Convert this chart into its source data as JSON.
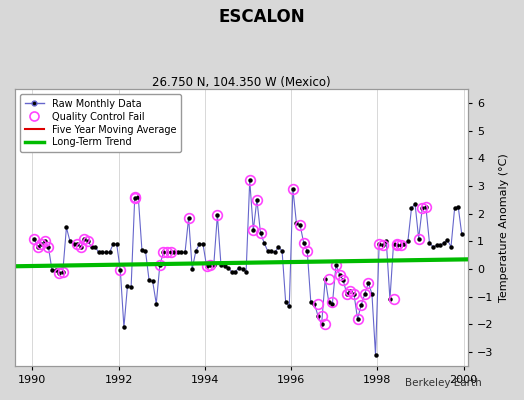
{
  "title": "ESCALON",
  "subtitle": "26.750 N, 104.350 W (Mexico)",
  "ylabel": "Temperature Anomaly (°C)",
  "credit": "Berkeley Earth",
  "xlim": [
    1989.6,
    2000.1
  ],
  "ylim": [
    -3.5,
    6.5
  ],
  "yticks": [
    -3,
    -2,
    -1,
    0,
    1,
    2,
    3,
    4,
    5,
    6
  ],
  "xticks": [
    1990,
    1992,
    1994,
    1996,
    1998,
    2000
  ],
  "raw_x": [
    1990.042,
    1990.125,
    1990.208,
    1990.292,
    1990.375,
    1990.458,
    1990.542,
    1990.625,
    1990.708,
    1990.792,
    1990.875,
    1990.958,
    1991.042,
    1991.125,
    1991.208,
    1991.292,
    1991.375,
    1991.458,
    1991.542,
    1991.625,
    1991.708,
    1991.792,
    1991.875,
    1991.958,
    1992.042,
    1992.125,
    1992.208,
    1992.292,
    1992.375,
    1992.458,
    1992.542,
    1992.625,
    1992.708,
    1992.792,
    1992.875,
    1992.958,
    1993.042,
    1993.125,
    1993.208,
    1993.292,
    1993.375,
    1993.458,
    1993.542,
    1993.625,
    1993.708,
    1993.792,
    1993.875,
    1993.958,
    1994.042,
    1994.125,
    1994.208,
    1994.292,
    1994.375,
    1994.458,
    1994.542,
    1994.625,
    1994.708,
    1994.792,
    1994.875,
    1994.958,
    1995.042,
    1995.125,
    1995.208,
    1995.292,
    1995.375,
    1995.458,
    1995.542,
    1995.625,
    1995.708,
    1995.792,
    1995.875,
    1995.958,
    1996.042,
    1996.125,
    1996.208,
    1996.292,
    1996.375,
    1996.458,
    1996.542,
    1996.625,
    1996.708,
    1996.792,
    1996.875,
    1996.958,
    1997.042,
    1997.125,
    1997.208,
    1997.292,
    1997.375,
    1997.458,
    1997.542,
    1997.625,
    1997.708,
    1997.792,
    1997.875,
    1997.958,
    1998.042,
    1998.125,
    1998.208,
    1998.292,
    1998.375,
    1998.458,
    1998.542,
    1998.625,
    1998.708,
    1998.792,
    1998.875,
    1998.958,
    1999.042,
    1999.125,
    1999.208,
    1999.292,
    1999.375,
    1999.458,
    1999.542,
    1999.625,
    1999.708,
    1999.792,
    1999.875,
    1999.958
  ],
  "raw_y": [
    1.1,
    0.8,
    0.9,
    1.0,
    0.8,
    -0.05,
    -0.05,
    -0.15,
    -0.1,
    1.5,
    1.0,
    0.9,
    0.9,
    0.8,
    1.1,
    1.0,
    0.8,
    0.8,
    0.6,
    0.6,
    0.6,
    0.6,
    0.9,
    0.9,
    -0.05,
    -2.1,
    -0.6,
    -0.65,
    2.55,
    2.6,
    0.7,
    0.65,
    -0.4,
    -0.45,
    -1.25,
    0.15,
    0.6,
    0.6,
    0.6,
    0.6,
    0.6,
    0.6,
    0.6,
    1.85,
    0.0,
    0.65,
    0.9,
    0.9,
    0.1,
    0.15,
    0.15,
    1.95,
    0.15,
    0.1,
    0.05,
    -0.1,
    -0.1,
    0.05,
    0.0,
    -0.1,
    3.2,
    1.4,
    2.5,
    1.3,
    0.95,
    0.65,
    0.65,
    0.6,
    0.8,
    0.65,
    -1.2,
    -1.35,
    2.9,
    1.65,
    1.6,
    0.95,
    0.65,
    -1.2,
    -1.25,
    -1.7,
    -2.0,
    -0.35,
    -1.2,
    -1.25,
    0.15,
    -0.2,
    -0.4,
    -0.9,
    -0.8,
    -0.9,
    -1.8,
    -1.3,
    -0.9,
    -0.5,
    -0.9,
    -3.1,
    0.9,
    0.85,
    1.0,
    -1.1,
    0.9,
    0.85,
    0.85,
    0.9,
    1.0,
    2.2,
    2.35,
    1.1,
    2.2,
    2.25,
    0.95,
    0.8,
    0.85,
    0.85,
    0.95,
    1.05,
    0.8,
    2.2,
    2.25,
    1.25
  ],
  "qc_x": [
    1990.042,
    1990.125,
    1990.208,
    1990.292,
    1990.375,
    1990.625,
    1990.708,
    1991.042,
    1991.125,
    1991.208,
    1991.292,
    1992.042,
    1992.375,
    1992.375,
    1992.958,
    1993.042,
    1993.125,
    1993.208,
    1993.625,
    1994.042,
    1994.125,
    1994.292,
    1995.042,
    1995.125,
    1995.208,
    1995.292,
    1996.042,
    1996.208,
    1996.292,
    1996.375,
    1996.625,
    1996.708,
    1996.792,
    1996.875,
    1996.958,
    1997.042,
    1997.125,
    1997.208,
    1997.292,
    1997.375,
    1997.458,
    1997.542,
    1997.625,
    1997.708,
    1997.792,
    1998.042,
    1998.125,
    1998.375,
    1998.458,
    1998.458,
    1998.542,
    1998.958,
    1999.042,
    1999.125
  ],
  "qc_y": [
    1.1,
    0.8,
    0.9,
    1.0,
    0.8,
    -0.15,
    -0.1,
    0.9,
    0.8,
    1.1,
    1.0,
    -0.05,
    2.55,
    2.6,
    0.15,
    0.6,
    0.6,
    0.6,
    1.85,
    0.1,
    0.15,
    1.95,
    3.2,
    1.4,
    2.5,
    1.3,
    2.9,
    1.6,
    0.95,
    0.65,
    -1.25,
    -1.7,
    -2.0,
    -0.35,
    -1.2,
    0.15,
    -0.2,
    -0.4,
    -0.9,
    -0.8,
    -0.9,
    -1.8,
    -1.3,
    -0.9,
    -0.5,
    0.9,
    0.85,
    -1.1,
    0.9,
    0.85,
    0.85,
    1.1,
    2.2,
    2.25
  ],
  "trend_x": [
    1989.6,
    2000.1
  ],
  "trend_y": [
    0.1,
    0.35
  ],
  "colors": {
    "raw_line": "#6666cc",
    "raw_marker": "#000000",
    "qc_fail": "#ff44ff",
    "five_year": "#dd0000",
    "trend": "#00bb00",
    "background": "#d8d8d8",
    "plot_bg": "#ffffff",
    "grid": "#bbbbbb"
  }
}
